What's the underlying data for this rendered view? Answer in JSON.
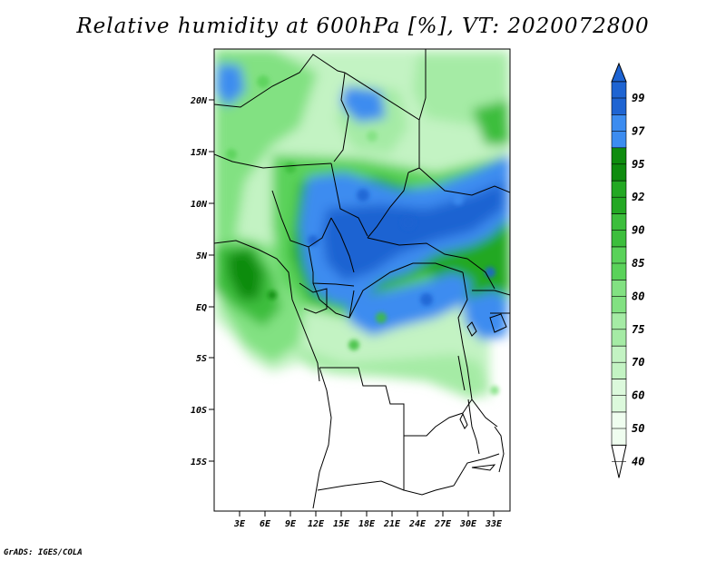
{
  "title": "Relative humidity at 600hPa [%], VT: 2020072800",
  "credit": "GrADS: IGES/COLA",
  "map": {
    "lat_labels": [
      "20N",
      "15N",
      "10N",
      "5N",
      "EQ",
      "5S",
      "10S",
      "15S"
    ],
    "lon_labels": [
      "3E",
      "6E",
      "9E",
      "12E",
      "15E",
      "18E",
      "21E",
      "24E",
      "27E",
      "30E",
      "33E"
    ]
  },
  "colorbar": {
    "levels": [
      "99",
      "97",
      "95",
      "92",
      "90",
      "85",
      "80",
      "75",
      "70",
      "60",
      "50",
      "40"
    ],
    "colors": [
      "#1e64d2",
      "#1e64d2",
      "#3c8cf0",
      "#0f8c0f",
      "#23a823",
      "#3cbe3c",
      "#5ad25a",
      "#82e182",
      "#a5eba5",
      "#c3f3c3",
      "#dcf9dc",
      "#effdef"
    ],
    "top_color": "#1e64d2",
    "bottom_color": "#ffffff"
  }
}
